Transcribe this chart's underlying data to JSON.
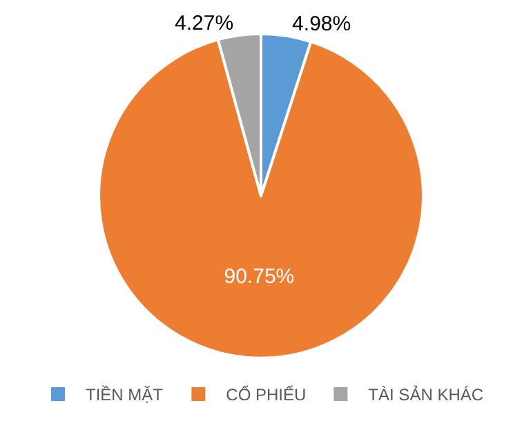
{
  "chart_data": {
    "type": "pie",
    "categories": [
      "TIỀN MẶT",
      "CỔ PHIẾU",
      "TÀI SẢN KHÁC"
    ],
    "values": [
      4.98,
      90.75,
      4.27
    ],
    "colors": [
      "#5b9bd5",
      "#ed7d31",
      "#a5a5a5"
    ],
    "value_labels": [
      "4.98%",
      "90.75%",
      "4.27%"
    ],
    "legend": "bottom"
  }
}
